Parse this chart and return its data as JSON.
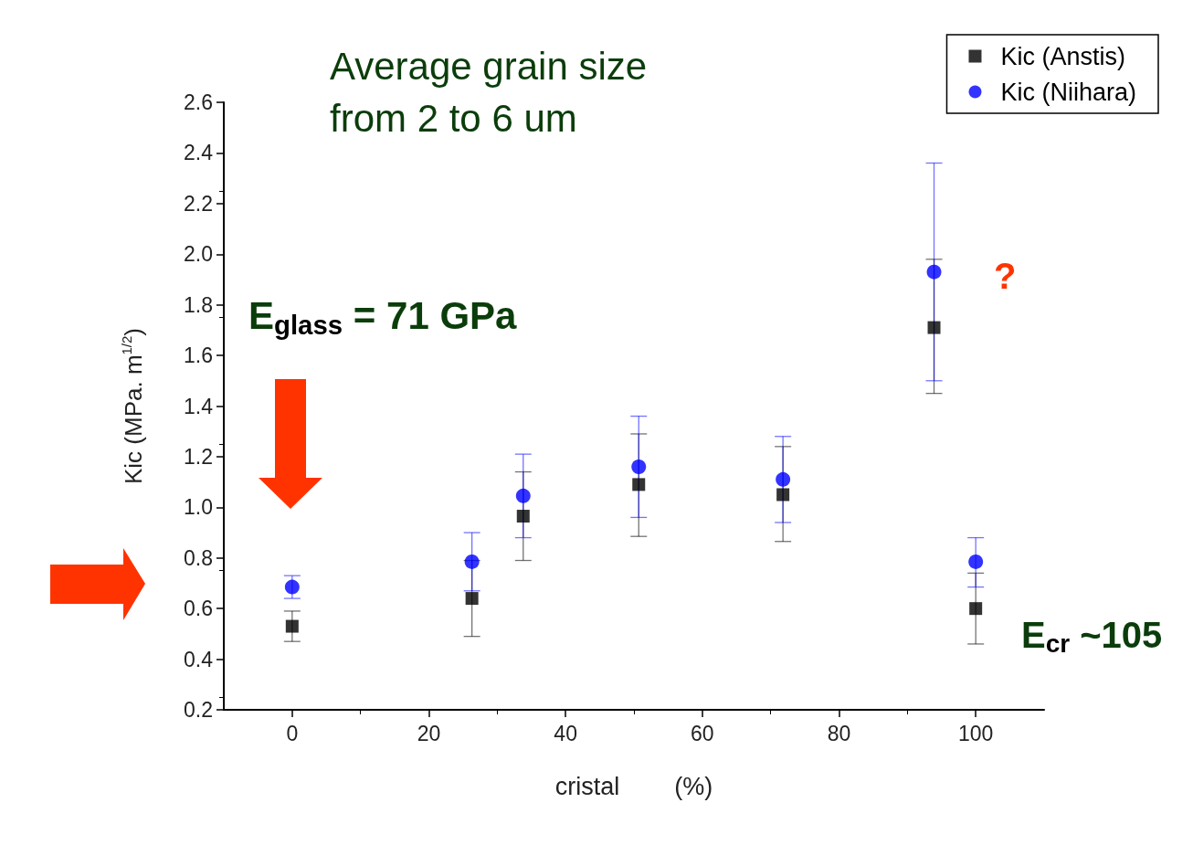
{
  "chart_data": {
    "type": "scatter",
    "xlabel": "cristal        (%)",
    "ylabel": "Kic (MPa. m$^{1/2}$)",
    "x": [
      0,
      26.3,
      33.8,
      50.7,
      71.8,
      93.9,
      100
    ],
    "xlim": [
      -10,
      110
    ],
    "xticks": [
      0,
      20,
      40,
      60,
      80,
      100
    ],
    "ylim": [
      0.2,
      2.6
    ],
    "yticks": [
      0.2,
      0.4,
      0.6,
      0.8,
      {
        "value": 1,
        "label": "1.0"
      },
      1.2,
      1.4,
      1.6,
      1.8,
      {
        "value": 2,
        "label": "2.0"
      },
      2.2,
      2.4,
      2.6
    ],
    "legend": "top right",
    "annotations": [
      "Average grain size\nfrom 2 to 6 um",
      "E$_{glass}$ = 71 GPa",
      "E$_{cr}$ ~105",
      "?"
    ],
    "series": [
      {
        "name": "Kic (Anstis)",
        "color": "#000000",
        "marker": "square",
        "values": [
          0.53,
          0.64,
          0.965,
          1.09,
          1.05,
          1.71,
          0.6
        ],
        "errors": [
          [
            0.47,
            0.59
          ],
          [
            0.49,
            0.79
          ],
          [
            0.79,
            1.14
          ],
          [
            0.885,
            1.29
          ],
          [
            0.865,
            1.24
          ],
          [
            1.45,
            1.98
          ],
          [
            0.46,
            0.74
          ]
        ]
      },
      {
        "name": "Kic (Niihara)",
        "color": "#0000ff",
        "marker": "circle",
        "values": [
          0.685,
          0.785,
          1.045,
          1.16,
          1.11,
          1.93,
          0.785
        ],
        "errors": [
          [
            0.64,
            0.73
          ],
          [
            0.67,
            0.9
          ],
          [
            0.88,
            1.21
          ],
          [
            0.96,
            1.36
          ],
          [
            0.94,
            1.28
          ],
          [
            1.5,
            2.36
          ],
          [
            0.685,
            0.88
          ]
        ]
      }
    ]
  }
}
